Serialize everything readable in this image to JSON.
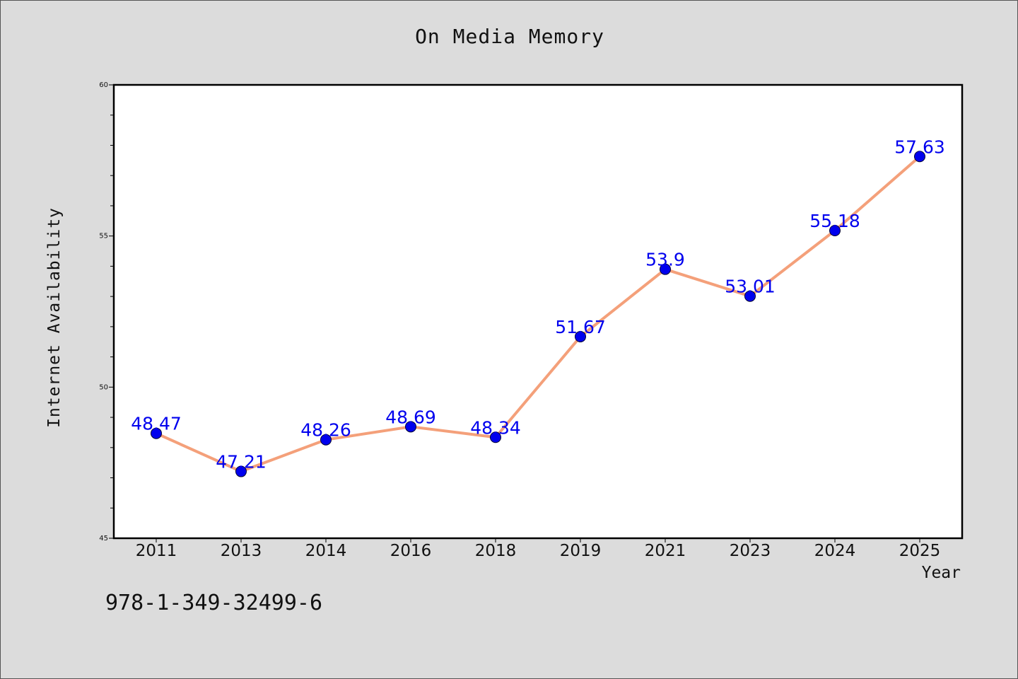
{
  "chart_data": {
    "type": "line",
    "title": "On Media Memory",
    "xlabel": "Year",
    "ylabel": "Internet Availability",
    "categories": [
      "2011",
      "2013",
      "2014",
      "2016",
      "2018",
      "2019",
      "2021",
      "2023",
      "2024",
      "2025"
    ],
    "series": [
      {
        "values": [
          48.47,
          47.21,
          48.26,
          48.69,
          48.34,
          51.67,
          53.9,
          53.01,
          55.18,
          57.63
        ],
        "labels": [
          "48.47",
          "47.21",
          "48.26",
          "48.69",
          "48.34",
          "51.67",
          "53.9",
          "53.01",
          "55.18",
          "57.63"
        ]
      }
    ],
    "ylim": [
      45,
      60
    ],
    "yticks": [
      "45",
      "50",
      "55",
      "60"
    ],
    "grid": false,
    "line_color": "#f4a07a",
    "marker_color": "#0000ee",
    "label_color": "#0000ee"
  },
  "footnote": "978-1-349-32499-6"
}
